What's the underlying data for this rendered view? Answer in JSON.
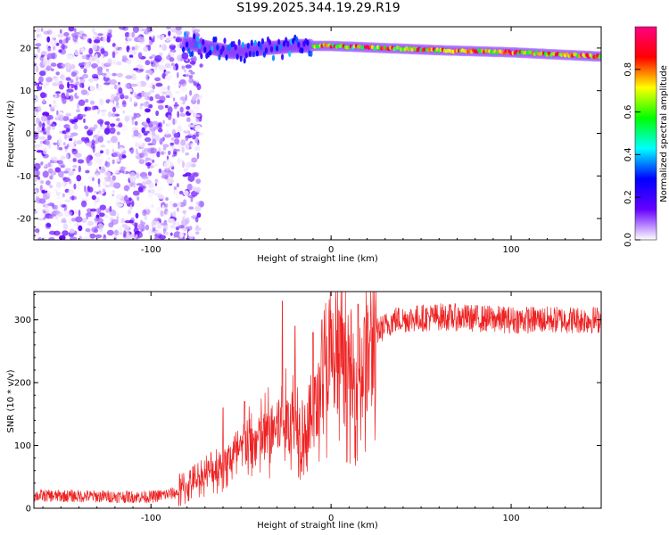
{
  "title": "S199.2025.344.19.29.R19",
  "chart_data": [
    {
      "type": "heatmap",
      "title": "S199.2025.344.19.29.R19",
      "xlabel": "Height of straight line (km)",
      "ylabel": "Frequency (Hz)",
      "xlim": [
        -165,
        150
      ],
      "ylim": [
        -25,
        25
      ],
      "xticks": [
        -100,
        0,
        100
      ],
      "yticks": [
        -20,
        -10,
        0,
        10,
        20
      ],
      "colorbar": {
        "label": "Normalized spectral amplitude",
        "range": [
          0,
          1
        ],
        "ticks": [
          0.0,
          0.2,
          0.4,
          0.6,
          0.8
        ],
        "tick_labels": [
          "0.0",
          "0.2",
          "0.4",
          "0.6",
          "0.8"
        ],
        "colors": [
          "#ffffff",
          "#6600ff",
          "#0000ff",
          "#00ffff",
          "#00ff00",
          "#ffff00",
          "#ff0000",
          "#ff0080"
        ]
      },
      "ridge": {
        "points": [
          {
            "x": -78,
            "f": 21
          },
          {
            "x": -55,
            "f": 19
          },
          {
            "x": -35,
            "f": 20
          },
          {
            "x": -20,
            "f": 20.5
          },
          {
            "x": 0,
            "f": 20.5
          },
          {
            "x": 30,
            "f": 20
          },
          {
            "x": 60,
            "f": 19.5
          },
          {
            "x": 100,
            "f": 19
          },
          {
            "x": 150,
            "f": 18
          }
        ],
        "peak_region": [
          -10,
          150
        ]
      },
      "noise_region": {
        "x_from": -165,
        "x_to": -80,
        "f_from": -25,
        "f_to": 25,
        "peak_amplitude": 0.15
      }
    },
    {
      "type": "line",
      "xlabel": "Height of straight line (km)",
      "ylabel": "SNR (10 * v/v)",
      "xlim": [
        -165,
        150
      ],
      "ylim": [
        0,
        345
      ],
      "xticks": [
        -100,
        0,
        100
      ],
      "yticks": [
        0,
        100,
        200,
        300
      ],
      "series": [
        {
          "name": "SNR",
          "color": "#ee2222",
          "trend": [
            {
              "x": -165,
              "y": 20
            },
            {
              "x": -100,
              "y": 18
            },
            {
              "x": -85,
              "y": 25
            },
            {
              "x": -75,
              "y": 45
            },
            {
              "x": -60,
              "y": 70
            },
            {
              "x": -45,
              "y": 100
            },
            {
              "x": -30,
              "y": 130
            },
            {
              "x": -20,
              "y": 140
            },
            {
              "x": -12,
              "y": 120
            },
            {
              "x": -5,
              "y": 200
            },
            {
              "x": 5,
              "y": 250
            },
            {
              "x": 12,
              "y": 185
            },
            {
              "x": 18,
              "y": 230
            },
            {
              "x": 25,
              "y": 280
            },
            {
              "x": 35,
              "y": 300
            },
            {
              "x": 60,
              "y": 305
            },
            {
              "x": 100,
              "y": 300
            },
            {
              "x": 150,
              "y": 300
            }
          ],
          "spikes": [
            {
              "x": -60,
              "y": 160
            },
            {
              "x": -48,
              "y": 170
            },
            {
              "x": -27,
              "y": 330
            },
            {
              "x": -20,
              "y": 290
            },
            {
              "x": -10,
              "y": 280
            },
            {
              "x": -5,
              "y": 300
            },
            {
              "x": 5,
              "y": 305
            },
            {
              "x": 15,
              "y": 325
            }
          ]
        }
      ]
    }
  ]
}
